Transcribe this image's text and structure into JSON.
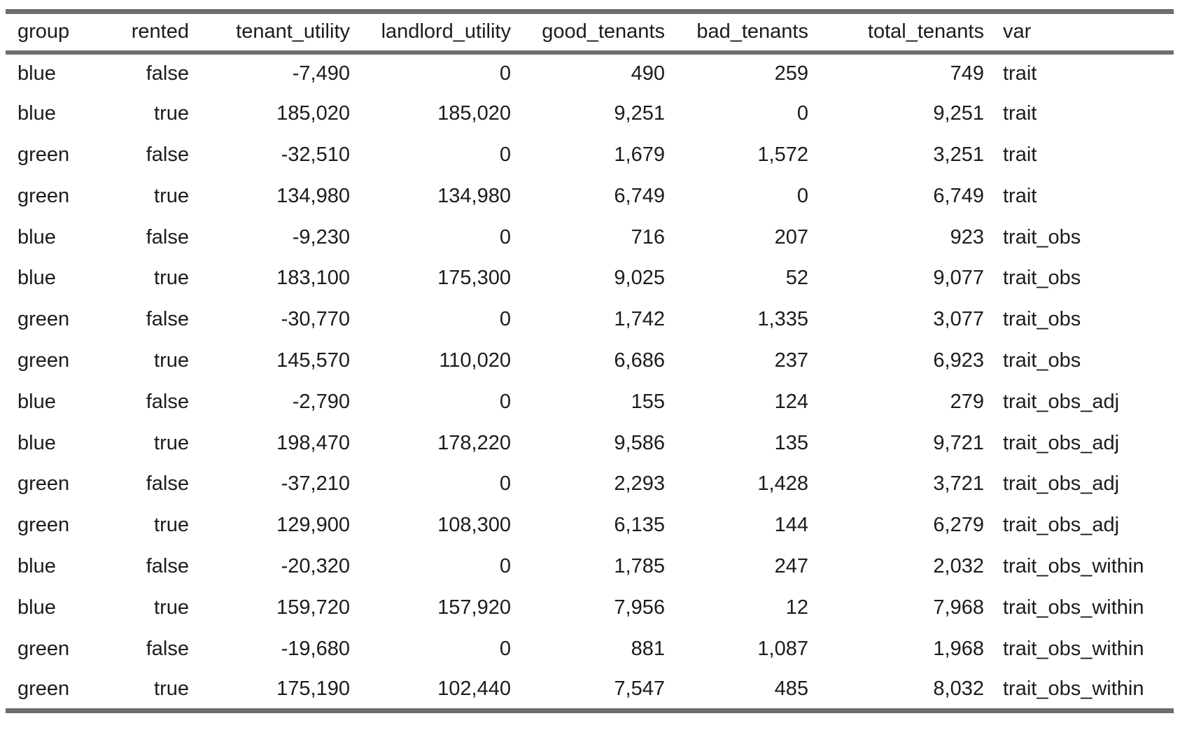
{
  "chart_data": {
    "type": "table",
    "columns": [
      "group",
      "rented",
      "tenant_utility",
      "landlord_utility",
      "good_tenants",
      "bad_tenants",
      "total_tenants",
      "var"
    ],
    "rows": [
      {
        "group": "blue",
        "rented": "false",
        "tenant_utility": "-7,490",
        "landlord_utility": "0",
        "good_tenants": "490",
        "bad_tenants": "259",
        "total_tenants": "749",
        "var": "trait"
      },
      {
        "group": "blue",
        "rented": "true",
        "tenant_utility": "185,020",
        "landlord_utility": "185,020",
        "good_tenants": "9,251",
        "bad_tenants": "0",
        "total_tenants": "9,251",
        "var": "trait"
      },
      {
        "group": "green",
        "rented": "false",
        "tenant_utility": "-32,510",
        "landlord_utility": "0",
        "good_tenants": "1,679",
        "bad_tenants": "1,572",
        "total_tenants": "3,251",
        "var": "trait"
      },
      {
        "group": "green",
        "rented": "true",
        "tenant_utility": "134,980",
        "landlord_utility": "134,980",
        "good_tenants": "6,749",
        "bad_tenants": "0",
        "total_tenants": "6,749",
        "var": "trait"
      },
      {
        "group": "blue",
        "rented": "false",
        "tenant_utility": "-9,230",
        "landlord_utility": "0",
        "good_tenants": "716",
        "bad_tenants": "207",
        "total_tenants": "923",
        "var": "trait_obs"
      },
      {
        "group": "blue",
        "rented": "true",
        "tenant_utility": "183,100",
        "landlord_utility": "175,300",
        "good_tenants": "9,025",
        "bad_tenants": "52",
        "total_tenants": "9,077",
        "var": "trait_obs"
      },
      {
        "group": "green",
        "rented": "false",
        "tenant_utility": "-30,770",
        "landlord_utility": "0",
        "good_tenants": "1,742",
        "bad_tenants": "1,335",
        "total_tenants": "3,077",
        "var": "trait_obs"
      },
      {
        "group": "green",
        "rented": "true",
        "tenant_utility": "145,570",
        "landlord_utility": "110,020",
        "good_tenants": "6,686",
        "bad_tenants": "237",
        "total_tenants": "6,923",
        "var": "trait_obs"
      },
      {
        "group": "blue",
        "rented": "false",
        "tenant_utility": "-2,790",
        "landlord_utility": "0",
        "good_tenants": "155",
        "bad_tenants": "124",
        "total_tenants": "279",
        "var": "trait_obs_adj"
      },
      {
        "group": "blue",
        "rented": "true",
        "tenant_utility": "198,470",
        "landlord_utility": "178,220",
        "good_tenants": "9,586",
        "bad_tenants": "135",
        "total_tenants": "9,721",
        "var": "trait_obs_adj"
      },
      {
        "group": "green",
        "rented": "false",
        "tenant_utility": "-37,210",
        "landlord_utility": "0",
        "good_tenants": "2,293",
        "bad_tenants": "1,428",
        "total_tenants": "3,721",
        "var": "trait_obs_adj"
      },
      {
        "group": "green",
        "rented": "true",
        "tenant_utility": "129,900",
        "landlord_utility": "108,300",
        "good_tenants": "6,135",
        "bad_tenants": "144",
        "total_tenants": "6,279",
        "var": "trait_obs_adj"
      },
      {
        "group": "blue",
        "rented": "false",
        "tenant_utility": "-20,320",
        "landlord_utility": "0",
        "good_tenants": "1,785",
        "bad_tenants": "247",
        "total_tenants": "2,032",
        "var": "trait_obs_within"
      },
      {
        "group": "blue",
        "rented": "true",
        "tenant_utility": "159,720",
        "landlord_utility": "157,920",
        "good_tenants": "7,956",
        "bad_tenants": "12",
        "total_tenants": "7,968",
        "var": "trait_obs_within"
      },
      {
        "group": "green",
        "rented": "false",
        "tenant_utility": "-19,680",
        "landlord_utility": "0",
        "good_tenants": "881",
        "bad_tenants": "1,087",
        "total_tenants": "1,968",
        "var": "trait_obs_within"
      },
      {
        "group": "green",
        "rented": "true",
        "tenant_utility": "175,190",
        "landlord_utility": "102,440",
        "good_tenants": "7,547",
        "bad_tenants": "485",
        "total_tenants": "8,032",
        "var": "trait_obs_within"
      }
    ]
  },
  "colors": {
    "rule": "#6e6e6e",
    "text": "#1c1c1c",
    "background": "#ffffff"
  }
}
